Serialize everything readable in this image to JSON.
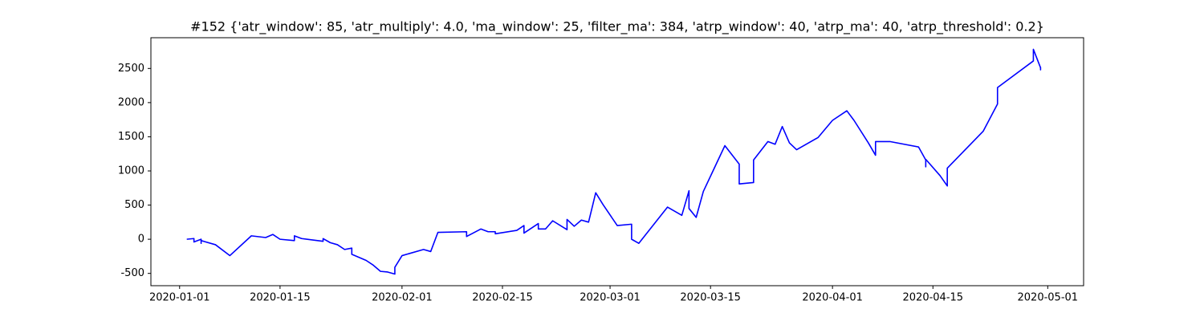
{
  "chart_data": {
    "type": "line",
    "title": "#152 {'atr_window': 85, 'atr_multiply': 4.0, 'ma_window': 25, 'filter_ma': 384, 'atrp_window': 40, 'atrp_ma': 40, 'atrp_threshold': 0.2}",
    "color": "#0000ff",
    "x": [
      "2020-01-02",
      "2020-01-03",
      "2020-01-03",
      "2020-01-04",
      "2020-01-04",
      "2020-01-04",
      "2020-01-06",
      "2020-01-08",
      "2020-01-11",
      "2020-01-13",
      "2020-01-14",
      "2020-01-15",
      "2020-01-17",
      "2020-01-17",
      "2020-01-18",
      "2020-01-21",
      "2020-01-21",
      "2020-01-22",
      "2020-01-23",
      "2020-01-24",
      "2020-01-25",
      "2020-01-25",
      "2020-01-27",
      "2020-01-28",
      "2020-01-29",
      "2020-01-30",
      "2020-01-31",
      "2020-01-31",
      "2020-02-01",
      "2020-02-04",
      "2020-02-05",
      "2020-02-06",
      "2020-02-10",
      "2020-02-10",
      "2020-02-12",
      "2020-02-13",
      "2020-02-14",
      "2020-02-14",
      "2020-02-17",
      "2020-02-18",
      "2020-02-18",
      "2020-02-20",
      "2020-02-20",
      "2020-02-21",
      "2020-02-22",
      "2020-02-24",
      "2020-02-24",
      "2020-02-25",
      "2020-02-26",
      "2020-02-27",
      "2020-02-28",
      "2020-02-29",
      "2020-03-02",
      "2020-03-04",
      "2020-03-04",
      "2020-03-05",
      "2020-03-09",
      "2020-03-11",
      "2020-03-12",
      "2020-03-12",
      "2020-03-13",
      "2020-03-14",
      "2020-03-17",
      "2020-03-19",
      "2020-03-19",
      "2020-03-21",
      "2020-03-21",
      "2020-03-23",
      "2020-03-24",
      "2020-03-25",
      "2020-03-26",
      "2020-03-27",
      "2020-03-30",
      "2020-04-01",
      "2020-04-03",
      "2020-04-04",
      "2020-04-06",
      "2020-04-07",
      "2020-04-07",
      "2020-04-09",
      "2020-04-13",
      "2020-04-14",
      "2020-04-14",
      "2020-04-14",
      "2020-04-14",
      "2020-04-16",
      "2020-04-17",
      "2020-04-17",
      "2020-04-22",
      "2020-04-24",
      "2020-04-24",
      "2020-04-29",
      "2020-04-29",
      "2020-04-30",
      "2020-04-30",
      "2020-04-30"
    ],
    "values": [
      0,
      10,
      -40,
      0,
      -60,
      -20,
      -80,
      -240,
      50,
      25,
      70,
      0,
      -20,
      50,
      10,
      -30,
      10,
      -50,
      -80,
      -150,
      -130,
      -220,
      -310,
      -380,
      -470,
      -480,
      -510,
      -410,
      -240,
      -150,
      -180,
      100,
      110,
      40,
      150,
      110,
      110,
      80,
      130,
      200,
      90,
      230,
      150,
      150,
      270,
      140,
      290,
      190,
      280,
      250,
      680,
      510,
      200,
      220,
      0,
      -60,
      470,
      350,
      710,
      450,
      320,
      700,
      1370,
      1100,
      810,
      830,
      1160,
      1430,
      1390,
      1650,
      1410,
      1310,
      1490,
      1740,
      1880,
      1740,
      1410,
      1230,
      1430,
      1430,
      1350,
      1160,
      1100,
      1060,
      1170,
      930,
      780,
      1040,
      1580,
      1980,
      2220,
      2610,
      2780,
      2510,
      2480,
      2520
    ],
    "xlim": [
      "2019-12-28",
      "2020-05-06"
    ],
    "xticks": [
      "2020-01-01",
      "2020-01-15",
      "2020-02-01",
      "2020-02-15",
      "2020-03-01",
      "2020-03-15",
      "2020-04-01",
      "2020-04-15",
      "2020-05-01"
    ],
    "ylim": [
      -680,
      2950
    ],
    "yticks": [
      -500,
      0,
      500,
      1000,
      1500,
      2000,
      2500
    ]
  }
}
